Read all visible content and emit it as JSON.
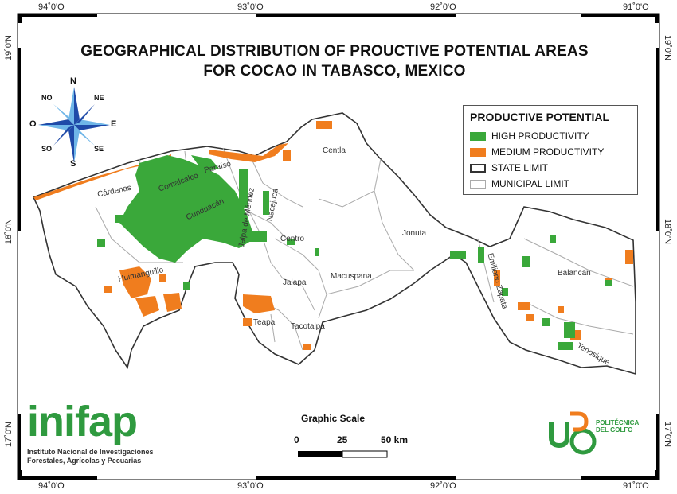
{
  "title_line1": "GEOGRAPHICAL DISTRIBUTION OF PROUCTIVE POTENTIAL AREAS",
  "title_line2": "FOR COCAO IN TABASCO, MEXICO",
  "coords": {
    "top": [
      "94˚0'O",
      "93˚0'O",
      "92˚0'O",
      "91˚0'O"
    ],
    "bottom": [
      "94˚0'O",
      "93˚0'O",
      "92˚0'O",
      "91˚0'O"
    ],
    "left": [
      "19˚0'N",
      "18˚0'N",
      "17˚0'N"
    ],
    "right": [
      "19˚0'N",
      "18˚0'N",
      "17˚0'N"
    ]
  },
  "legend": {
    "title": "PRODUCTIVE POTENTIAL",
    "items": [
      {
        "label": "HIGH PRODUCTIVITY",
        "color": "#3aa83a"
      },
      {
        "label": "MEDIUM PRODUCTIVITY",
        "color": "#f07d1e"
      },
      {
        "label": "STATE LIMIT",
        "color": "#333333"
      },
      {
        "label": "MUNICIPAL LIMIT",
        "color": "#aaaaaa"
      }
    ]
  },
  "compass": {
    "N": "N",
    "S": "S",
    "E": "E",
    "O": "O",
    "NO": "NO",
    "NE": "NE",
    "SO": "SO",
    "SE": "SE"
  },
  "municipalities": [
    "Centla",
    "Paraíso",
    "Comalcalco",
    "Cárdenas",
    "Cunduacán",
    "Nacajuca",
    "Jalpa de Méndez",
    "Centro",
    "Jonuta",
    "Huimanguillo",
    "Macuspana",
    "Jalapa",
    "Teapa",
    "Tacotalpa",
    "Emiliano Zapata",
    "Balancan",
    "Tenosique"
  ],
  "scale": {
    "title": "Graphic Scale",
    "labels": [
      "0",
      "25",
      "50 km"
    ]
  },
  "logos": {
    "inifap_name": "inifap",
    "inifap_line1": "Instituto Nacional de Investigaciones",
    "inifap_line2": "Forestales, Agrícolas y Pecuarias",
    "upg_name": "POLITÉCNICA DEL GOLFO"
  },
  "colors": {
    "high": "#3aa83a",
    "medium": "#f07d1e",
    "state_limit": "#333333",
    "municipal_limit": "#aaaaaa",
    "land": "#ffffff"
  }
}
